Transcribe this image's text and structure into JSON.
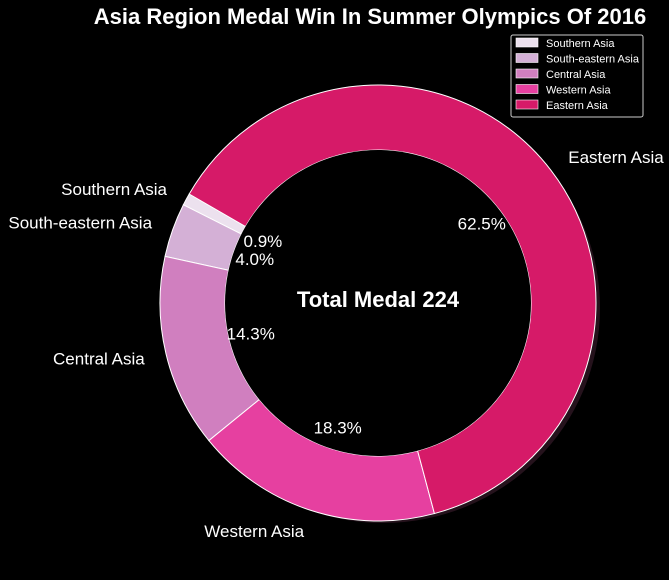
{
  "chart_data": {
    "type": "pie",
    "title": "Asia Region Medal Win In Summer Olympics Of 2016",
    "center_text": "Total Medal 224",
    "legend_position": "top-right",
    "categories": [
      "Southern Asia",
      "South-eastern Asia",
      "Central Asia",
      "Western Asia",
      "Eastern Asia"
    ],
    "values": [
      0.9,
      4.0,
      14.3,
      18.3,
      62.5
    ],
    "value_labels": [
      "0.9%",
      "4.0%",
      "14.3%",
      "18.3%",
      "62.5%"
    ],
    "colors": [
      "#ece1ee",
      "#d4b0d6",
      "#d07fbf",
      "#e640a0",
      "#d61a68"
    ]
  }
}
